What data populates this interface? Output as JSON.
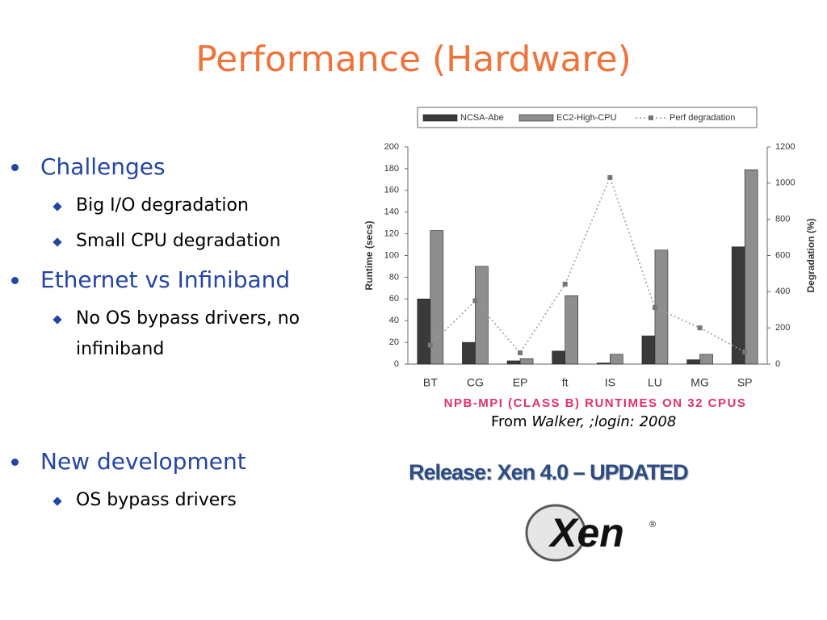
{
  "title": "Performance (Hardware)",
  "sections": [
    {
      "heading": "Challenges",
      "items": [
        "Big I/O degradation",
        "Small CPU degradation"
      ]
    },
    {
      "heading": "Ethernet vs Infiniband",
      "items": [
        "No OS bypass drivers, no infiniband"
      ]
    },
    {
      "heading": "New development",
      "items": [
        "OS bypass drivers"
      ]
    }
  ],
  "chart_data": {
    "type": "bar",
    "caption": "NPB-MPI (CLASS B) RUNTIMES ON 32 CPUS",
    "y_label": "Runtime (secs)",
    "y2_label": "Degradation (%)",
    "categories": [
      "BT",
      "CG",
      "EP",
      "ft",
      "IS",
      "LU",
      "MG",
      "SP"
    ],
    "series": [
      {
        "name": "NCSA-Abe",
        "type": "bar",
        "color": "#3a3a3a",
        "values": [
          60,
          20,
          3,
          12,
          1,
          26,
          4,
          108
        ]
      },
      {
        "name": "EC2-High-CPU",
        "type": "bar",
        "color": "#8e8e8e",
        "values": [
          123,
          90,
          5,
          63,
          9,
          105,
          9,
          179
        ]
      },
      {
        "name": "Perf degradation",
        "type": "line",
        "axis": "y2",
        "color": "#9a9a9a",
        "values": [
          105,
          350,
          62,
          442,
          1031,
          312,
          200,
          67
        ]
      }
    ],
    "ylim": [
      0,
      200
    ],
    "yticks": [
      0,
      20,
      40,
      60,
      80,
      100,
      120,
      140,
      160,
      180,
      200
    ],
    "y2lim": [
      0,
      1200
    ],
    "y2ticks": [
      0,
      200,
      400,
      600,
      800,
      1000,
      1200
    ]
  },
  "source": {
    "prefix": "From",
    "citation": "Walker, ;login: 2008"
  },
  "release": "Release: Xen 4.0 – UPDATED",
  "logo": {
    "text": "Xen",
    "mark": "®"
  }
}
